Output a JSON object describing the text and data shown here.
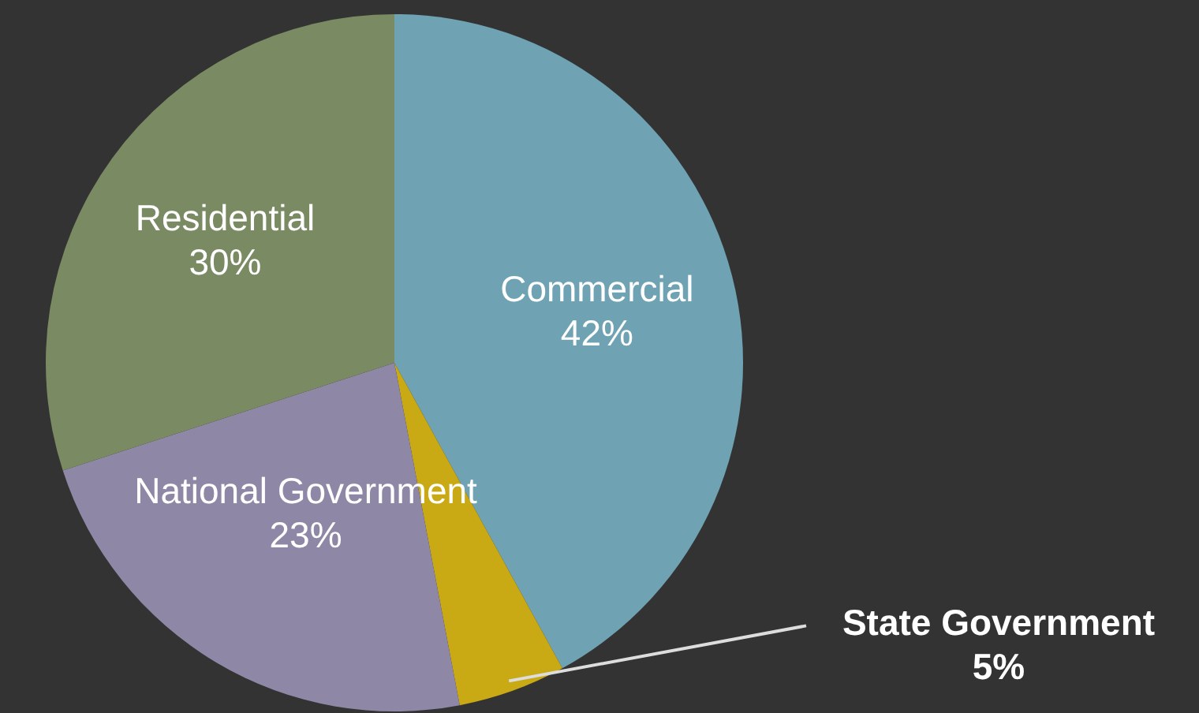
{
  "chart_data": {
    "type": "pie",
    "categories": [
      "Commercial",
      "State Government",
      "National Government",
      "Residential"
    ],
    "values": [
      42,
      5,
      23,
      30
    ],
    "colors": [
      "#6fa3b3",
      "#c9a914",
      "#8e88a6",
      "#7a8a62"
    ],
    "value_labels": [
      "42%",
      "5%",
      "23%",
      "30%"
    ]
  }
}
